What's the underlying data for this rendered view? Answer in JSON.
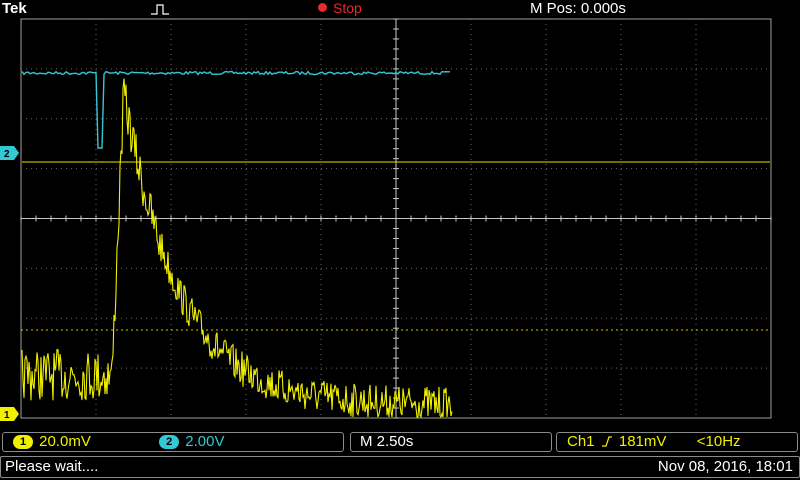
{
  "header": {
    "brand": "Tek",
    "run_state": "Stop",
    "m_pos": "M Pos: 0.000s"
  },
  "markers": {
    "ch2": "2",
    "ch1": "1"
  },
  "ch1_readout": {
    "badge": "1",
    "scale": "20.0mV",
    "color": "#f0f000"
  },
  "ch2_readout": {
    "badge": "2",
    "scale": "2.00V",
    "color": "#34c8d4"
  },
  "timebase": {
    "label": "M 2.50s"
  },
  "trigger": {
    "channel": "Ch1",
    "slope_icon": "rising-edge-icon",
    "level": "181mV",
    "freq": "<10Hz"
  },
  "message": {
    "text": "Please wait....",
    "timestamp": "Nov 08, 2016, 18:01"
  },
  "colors": {
    "ch1": "#f0f000",
    "ch2": "#34c8d4",
    "run_state": "#e52b2b"
  }
}
